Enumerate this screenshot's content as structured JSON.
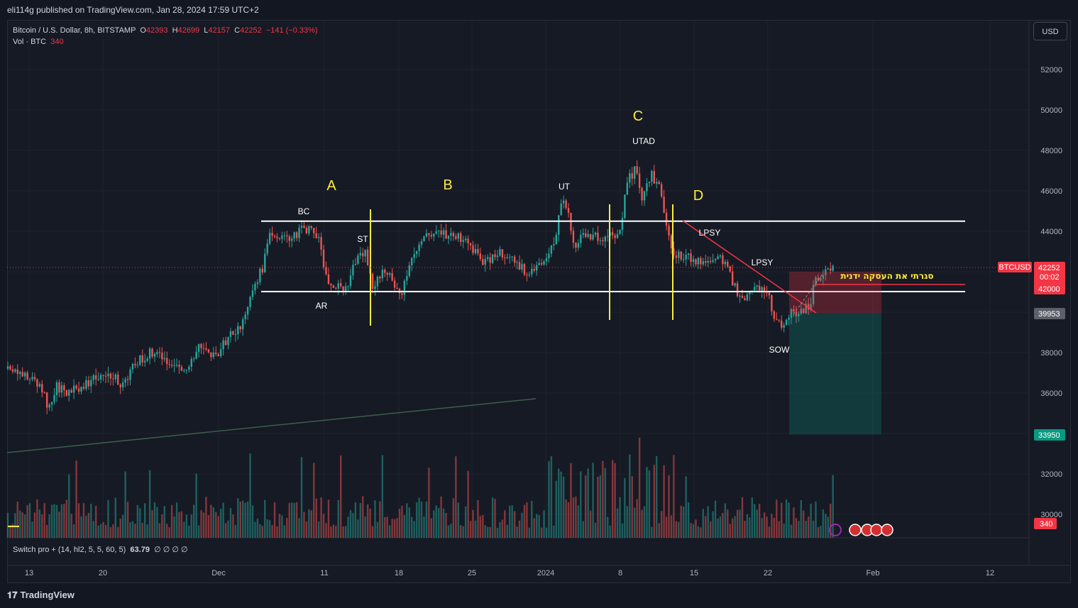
{
  "header": {
    "published": "eli114g published on TradingView.com, Jan 28, 2024 17:59 UTC+2"
  },
  "legend": {
    "symbol": "Bitcoin / U.S. Dollar, 8h, BITSTAMP",
    "o_label": "O",
    "o": "42393",
    "h_label": "H",
    "h": "42699",
    "l_label": "L",
    "l": "42157",
    "c_label": "C",
    "c": "42252",
    "change": "−141 (−0.33%)",
    "vol_label": "Vol · BTC",
    "vol": "340"
  },
  "currency_button": "USD",
  "indicator": {
    "label": "Switch pro + (14, hl2, 5, 5, 60, 5)",
    "value": "63.79",
    "extra": "∅ ∅ ∅ ∅"
  },
  "branding": {
    "logo_text": "TradingView"
  },
  "colors": {
    "up": "#26a69a",
    "down": "#ef5350",
    "label_yellow": "#ffeb3b",
    "price_tag": "#f23645",
    "grey_tag": "#5d606b",
    "green_tag": "#089981"
  },
  "chart_data": {
    "type": "candlestick",
    "symbol": "BTCUSD",
    "timeframe": "8h",
    "x_ticks": [
      "13",
      "20",
      "Dec",
      "11",
      "18",
      "25",
      "2024",
      "8",
      "15",
      "22",
      "Feb",
      "12"
    ],
    "y_ticks": [
      30000,
      32000,
      34000,
      36000,
      38000,
      40000,
      42000,
      44000,
      46000,
      48000,
      50000,
      52000
    ],
    "ylim": [
      29300,
      53500
    ],
    "price_tags": [
      {
        "label": "BTCUSD",
        "value": "42252",
        "sub": "00:02",
        "color": "#f23645"
      },
      {
        "value": "42000",
        "color": "#f23645"
      },
      {
        "value": "39953",
        "color": "#5d606b"
      },
      {
        "value": "33950",
        "color": "#089981"
      },
      {
        "value": "340",
        "color": "#f23645"
      }
    ],
    "phase_labels": [
      "A",
      "B",
      "C",
      "D"
    ],
    "event_labels": [
      "BC",
      "AR",
      "ST",
      "UT",
      "UTAD",
      "LPSY",
      "LPSY",
      "SOW"
    ],
    "annotation": "סגרתי את העסקה ידנית",
    "range_high": 44500,
    "range_low": 41000,
    "position": {
      "entry": 39953,
      "stop": 42000,
      "target": 33950
    }
  }
}
